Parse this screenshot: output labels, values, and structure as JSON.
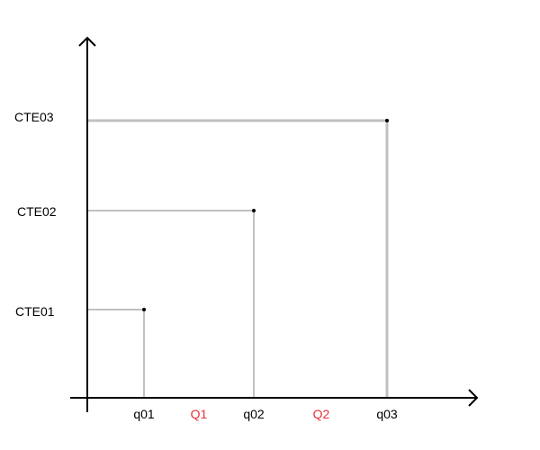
{
  "diagram": {
    "points": [
      {
        "x_label": "q01",
        "y_label": "CTE01"
      },
      {
        "x_label": "q02",
        "y_label": "CTE02"
      },
      {
        "x_label": "q03",
        "y_label": "CTE03"
      }
    ],
    "intervals": [
      {
        "label": "Q1"
      },
      {
        "label": "Q2"
      }
    ],
    "colors": {
      "axis": "#000000",
      "guide": "#c0c0c0",
      "interval_label": "#e8303a",
      "text": "#000000"
    }
  }
}
